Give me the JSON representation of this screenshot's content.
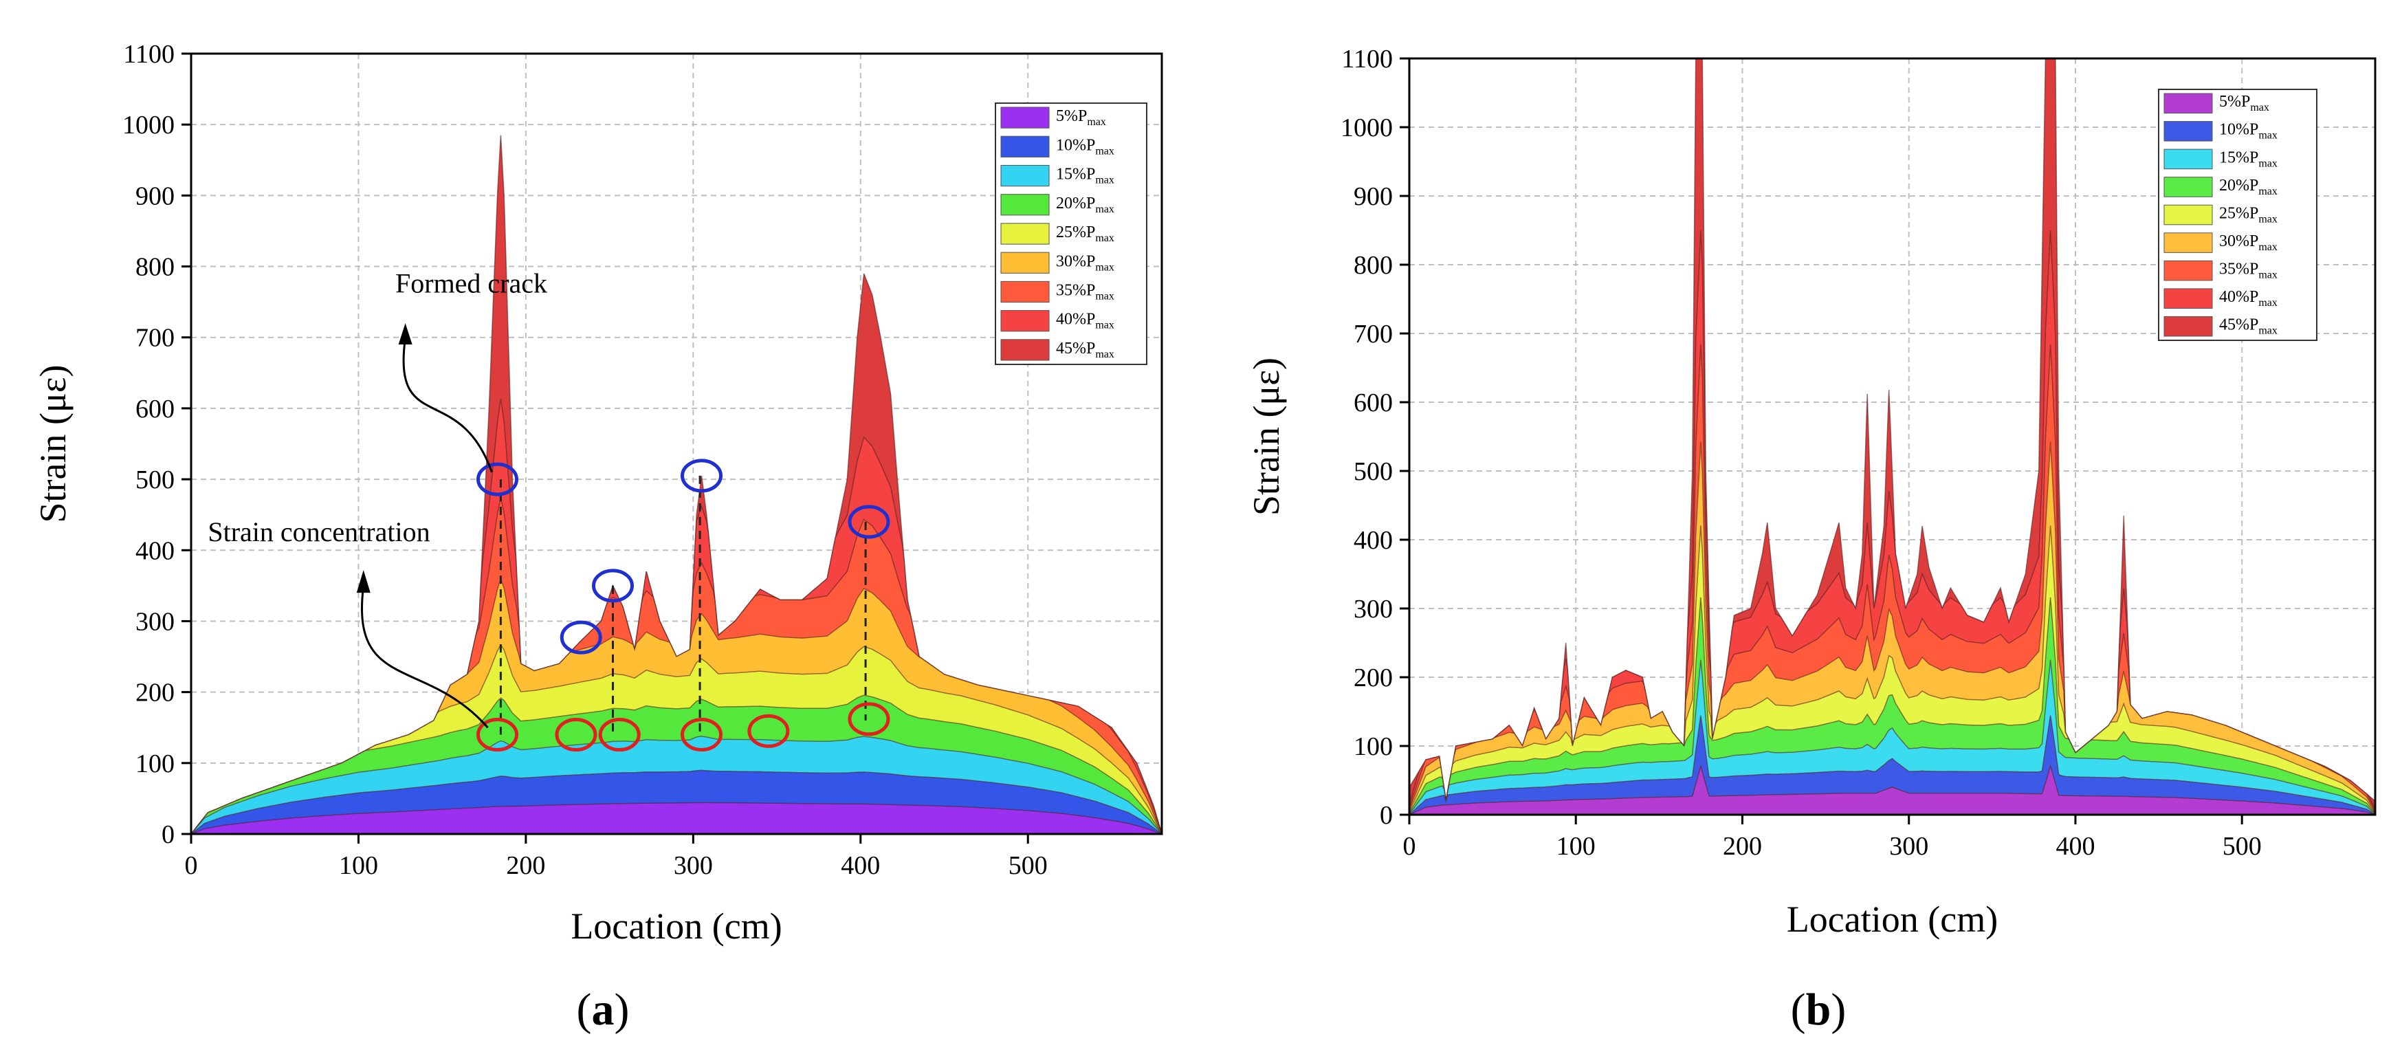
{
  "chart_data": [
    {
      "id": "a",
      "type": "area",
      "caption": "(a)",
      "caption_letter": "a",
      "xlabel": "Location (cm)",
      "ylabel": "Strain (με)",
      "xlim": [
        0,
        580
      ],
      "ylim": [
        0,
        1100
      ],
      "xticks": [
        0,
        100,
        200,
        300,
        400,
        500
      ],
      "yticks": [
        0,
        100,
        200,
        300,
        400,
        500,
        600,
        700,
        800,
        900,
        1000,
        1100
      ],
      "grid": true,
      "legend_position": "top-right",
      "series": [
        {
          "name": "5%Pmax",
          "label": "5%P",
          "sub": "max",
          "color": "#9b30f0"
        },
        {
          "name": "10%Pmax",
          "label": "10%P",
          "sub": "max",
          "color": "#3355e8"
        },
        {
          "name": "15%Pmax",
          "label": "15%P",
          "sub": "max",
          "color": "#33d4f2"
        },
        {
          "name": "20%Pmax",
          "label": "20%P",
          "sub": "max",
          "color": "#55e83c"
        },
        {
          "name": "25%Pmax",
          "label": "25%P",
          "sub": "max",
          "color": "#e6f23c"
        },
        {
          "name": "30%Pmax",
          "label": "30%P",
          "sub": "max",
          "color": "#ffbe33"
        },
        {
          "name": "35%Pmax",
          "label": "35%P",
          "sub": "max",
          "color": "#ff5a3c"
        },
        {
          "name": "40%Pmax",
          "label": "40%P",
          "sub": "max",
          "color": "#f54242"
        },
        {
          "name": "45%Pmax",
          "label": "45%P",
          "sub": "max",
          "color": "#dc3c3c"
        }
      ],
      "envelope": [
        [
          0,
          0
        ],
        [
          8,
          15
        ],
        [
          20,
          25
        ],
        [
          40,
          36
        ],
        [
          60,
          45
        ],
        [
          80,
          52
        ],
        [
          100,
          58
        ],
        [
          120,
          62
        ],
        [
          140,
          67
        ],
        [
          160,
          72
        ],
        [
          180,
          76
        ],
        [
          200,
          79
        ],
        [
          220,
          82
        ],
        [
          240,
          84
        ],
        [
          260,
          86
        ],
        [
          280,
          87
        ],
        [
          300,
          88
        ],
        [
          320,
          88
        ],
        [
          340,
          87
        ],
        [
          360,
          86
        ],
        [
          380,
          85
        ],
        [
          400,
          84
        ],
        [
          420,
          82
        ],
        [
          440,
          80
        ],
        [
          460,
          77
        ],
        [
          480,
          72
        ],
        [
          500,
          66
        ],
        [
          520,
          58
        ],
        [
          540,
          46
        ],
        [
          560,
          30
        ],
        [
          572,
          14
        ],
        [
          580,
          0
        ]
      ],
      "top_outline": [
        [
          0,
          0
        ],
        [
          10,
          30
        ],
        [
          30,
          50
        ],
        [
          60,
          75
        ],
        [
          90,
          100
        ],
        [
          110,
          125
        ],
        [
          130,
          140
        ],
        [
          145,
          160
        ],
        [
          155,
          210
        ],
        [
          165,
          225
        ],
        [
          172,
          300
        ],
        [
          178,
          600
        ],
        [
          183,
          900
        ],
        [
          185,
          985
        ],
        [
          187,
          900
        ],
        [
          192,
          500
        ],
        [
          197,
          240
        ],
        [
          205,
          230
        ],
        [
          220,
          240
        ],
        [
          232,
          270
        ],
        [
          245,
          300
        ],
        [
          252,
          350
        ],
        [
          258,
          320
        ],
        [
          265,
          260
        ],
        [
          272,
          370
        ],
        [
          280,
          300
        ],
        [
          290,
          250
        ],
        [
          298,
          260
        ],
        [
          302,
          450
        ],
        [
          305,
          505
        ],
        [
          308,
          450
        ],
        [
          315,
          280
        ],
        [
          325,
          300
        ],
        [
          340,
          345
        ],
        [
          352,
          330
        ],
        [
          365,
          330
        ],
        [
          380,
          360
        ],
        [
          392,
          500
        ],
        [
          398,
          700
        ],
        [
          402,
          790
        ],
        [
          407,
          760
        ],
        [
          412,
          700
        ],
        [
          418,
          620
        ],
        [
          422,
          500
        ],
        [
          428,
          330
        ],
        [
          435,
          250
        ],
        [
          450,
          225
        ],
        [
          470,
          210
        ],
        [
          490,
          200
        ],
        [
          510,
          190
        ],
        [
          530,
          180
        ],
        [
          550,
          150
        ],
        [
          565,
          100
        ],
        [
          575,
          40
        ],
        [
          580,
          0
        ]
      ],
      "annotations": [
        {
          "text": "Formed crack",
          "x": 122,
          "y": 763
        },
        {
          "text": "Strain concentration",
          "x": 10,
          "y": 413
        }
      ],
      "blue_circles": [
        [
          183,
          500
        ],
        [
          233,
          277
        ],
        [
          252,
          350
        ],
        [
          305,
          505
        ],
        [
          405,
          440
        ]
      ],
      "red_circles": [
        [
          183,
          140
        ],
        [
          230,
          140
        ],
        [
          256,
          140
        ],
        [
          305,
          140
        ],
        [
          345,
          145
        ],
        [
          405,
          162
        ]
      ],
      "dashed_lines": [
        [
          185,
          500,
          140
        ],
        [
          252,
          350,
          140
        ],
        [
          304,
          505,
          140
        ],
        [
          403,
          440,
          160
        ]
      ]
    },
    {
      "id": "b",
      "type": "area",
      "caption": "(b)",
      "caption_letter": "b",
      "xlabel": "Location (cm)",
      "ylabel": "Strain (με)",
      "xlim": [
        0,
        580
      ],
      "ylim": [
        0,
        1100
      ],
      "xticks": [
        0,
        100,
        200,
        300,
        400,
        500
      ],
      "yticks": [
        0,
        100,
        200,
        300,
        400,
        500,
        600,
        700,
        800,
        900,
        1000,
        1100
      ],
      "grid": true,
      "legend_position": "top-right",
      "series": [
        {
          "name": "5%Pmax",
          "label": "5%P",
          "sub": "max",
          "color": "#b43cd2"
        },
        {
          "name": "10%Pmax",
          "label": "10%P",
          "sub": "max",
          "color": "#3c5ae6"
        },
        {
          "name": "15%Pmax",
          "label": "15%P",
          "sub": "max",
          "color": "#3cdcf0"
        },
        {
          "name": "20%Pmax",
          "label": "20%P",
          "sub": "max",
          "color": "#5aeb46"
        },
        {
          "name": "25%Pmax",
          "label": "25%P",
          "sub": "max",
          "color": "#e6f546"
        },
        {
          "name": "30%Pmax",
          "label": "30%P",
          "sub": "max",
          "color": "#ffbe3c"
        },
        {
          "name": "35%Pmax",
          "label": "35%P",
          "sub": "max",
          "color": "#ff5a3c"
        },
        {
          "name": "40%Pmax",
          "label": "40%P",
          "sub": "max",
          "color": "#f54242"
        },
        {
          "name": "45%Pmax",
          "label": "45%P",
          "sub": "max",
          "color": "#dc3c3c"
        }
      ],
      "envelope": [
        [
          0,
          0
        ],
        [
          10,
          22
        ],
        [
          20,
          28
        ],
        [
          40,
          34
        ],
        [
          60,
          38
        ],
        [
          80,
          40
        ],
        [
          100,
          44
        ],
        [
          120,
          46
        ],
        [
          140,
          50
        ],
        [
          160,
          52
        ],
        [
          170,
          53
        ],
        [
          175,
          140
        ],
        [
          180,
          54
        ],
        [
          200,
          56
        ],
        [
          220,
          58
        ],
        [
          240,
          60
        ],
        [
          260,
          62
        ],
        [
          280,
          62
        ],
        [
          290,
          80
        ],
        [
          300,
          62
        ],
        [
          320,
          62
        ],
        [
          340,
          62
        ],
        [
          360,
          62
        ],
        [
          380,
          60
        ],
        [
          385,
          140
        ],
        [
          390,
          56
        ],
        [
          400,
          55
        ],
        [
          420,
          54
        ],
        [
          440,
          52
        ],
        [
          460,
          50
        ],
        [
          480,
          45
        ],
        [
          500,
          40
        ],
        [
          520,
          34
        ],
        [
          540,
          26
        ],
        [
          560,
          18
        ],
        [
          575,
          8
        ],
        [
          580,
          0
        ]
      ],
      "top_outline": [
        [
          0,
          40
        ],
        [
          10,
          80
        ],
        [
          18,
          85
        ],
        [
          22,
          20
        ],
        [
          28,
          100
        ],
        [
          50,
          110
        ],
        [
          60,
          130
        ],
        [
          68,
          100
        ],
        [
          75,
          155
        ],
        [
          82,
          110
        ],
        [
          90,
          140
        ],
        [
          94,
          250
        ],
        [
          98,
          100
        ],
        [
          105,
          170
        ],
        [
          115,
          130
        ],
        [
          122,
          200
        ],
        [
          130,
          210
        ],
        [
          140,
          200
        ],
        [
          145,
          140
        ],
        [
          152,
          150
        ],
        [
          158,
          120
        ],
        [
          165,
          100
        ],
        [
          170,
          500
        ],
        [
          172,
          1100
        ],
        [
          176,
          1100
        ],
        [
          178,
          500
        ],
        [
          182,
          110
        ],
        [
          190,
          200
        ],
        [
          195,
          290
        ],
        [
          205,
          300
        ],
        [
          212,
          380
        ],
        [
          215,
          425
        ],
        [
          220,
          300
        ],
        [
          230,
          260
        ],
        [
          245,
          320
        ],
        [
          255,
          400
        ],
        [
          258,
          425
        ],
        [
          262,
          330
        ],
        [
          268,
          300
        ],
        [
          272,
          380
        ],
        [
          275,
          612
        ],
        [
          279,
          300
        ],
        [
          285,
          420
        ],
        [
          288,
          618
        ],
        [
          292,
          380
        ],
        [
          298,
          300
        ],
        [
          305,
          350
        ],
        [
          308,
          420
        ],
        [
          312,
          360
        ],
        [
          320,
          300
        ],
        [
          325,
          330
        ],
        [
          335,
          290
        ],
        [
          345,
          280
        ],
        [
          355,
          330
        ],
        [
          360,
          280
        ],
        [
          370,
          350
        ],
        [
          378,
          500
        ],
        [
          382,
          1100
        ],
        [
          388,
          1100
        ],
        [
          390,
          500
        ],
        [
          394,
          120
        ],
        [
          400,
          90
        ],
        [
          410,
          110
        ],
        [
          420,
          130
        ],
        [
          425,
          150
        ],
        [
          429,
          435
        ],
        [
          433,
          160
        ],
        [
          440,
          140
        ],
        [
          455,
          150
        ],
        [
          470,
          145
        ],
        [
          490,
          130
        ],
        [
          510,
          110
        ],
        [
          530,
          90
        ],
        [
          550,
          70
        ],
        [
          565,
          50
        ],
        [
          575,
          30
        ],
        [
          580,
          20
        ]
      ]
    }
  ]
}
